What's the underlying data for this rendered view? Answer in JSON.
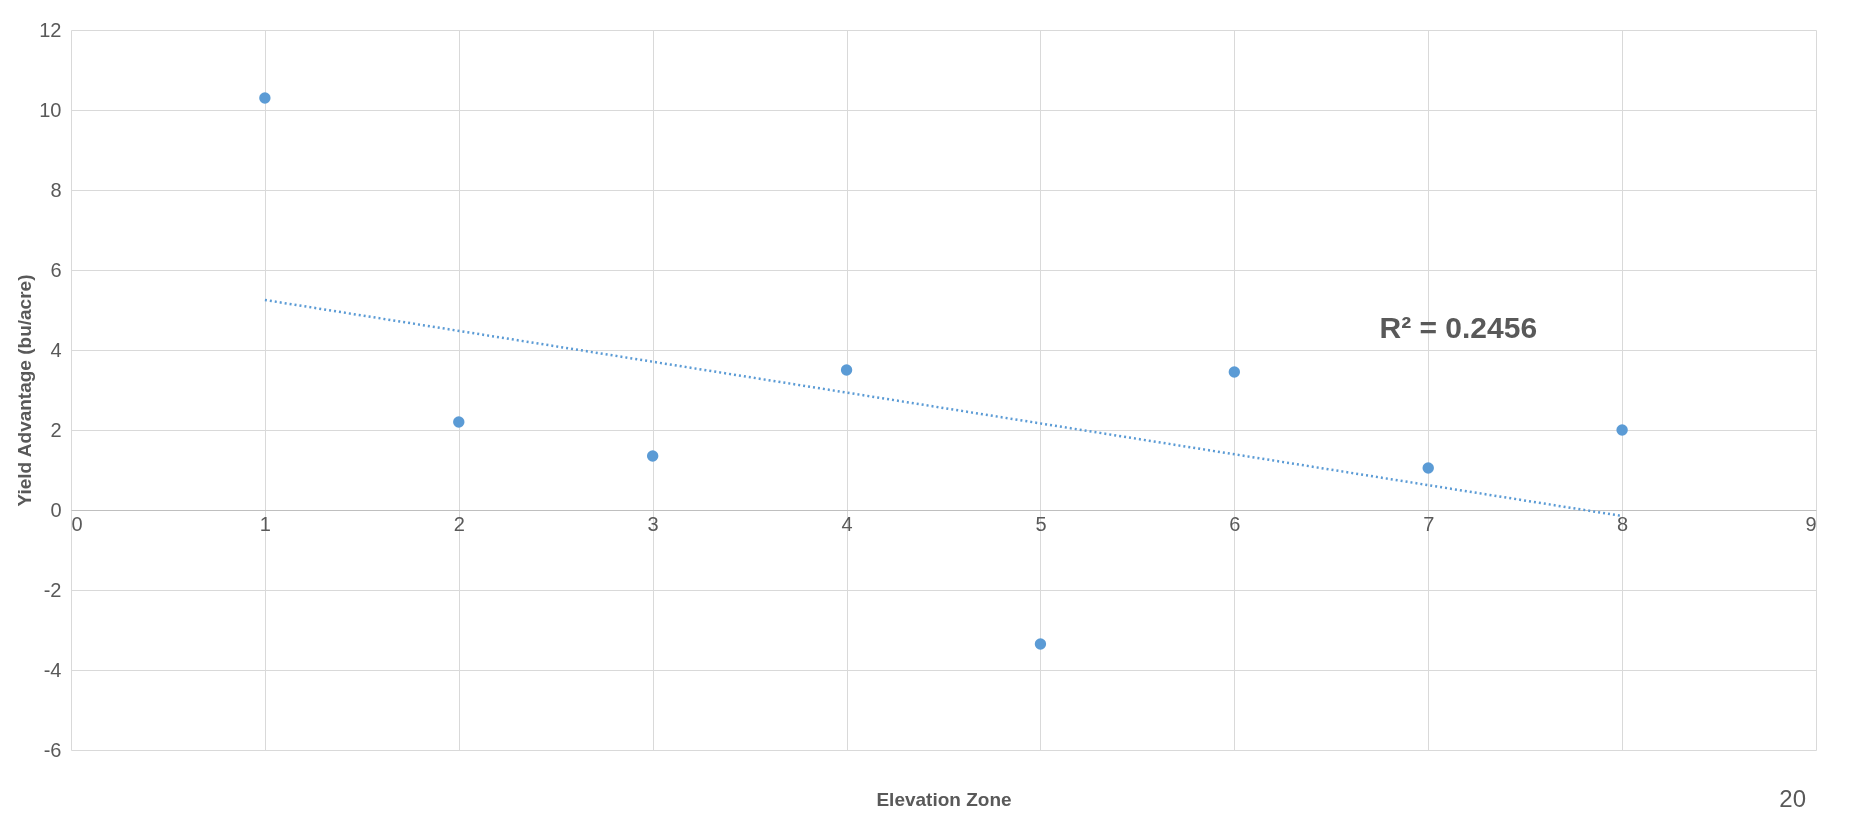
{
  "chart_data": {
    "type": "scatter",
    "xlabel": "Elevation Zone",
    "ylabel": "Yield Advantage (bu/acre)",
    "x": [
      1,
      2,
      3,
      4,
      5,
      6,
      7,
      8
    ],
    "series": [
      {
        "color": "#5b9bd5",
        "values": [
          10.3,
          2.2,
          1.35,
          3.5,
          -3.35,
          3.45,
          1.05,
          2.0
        ],
        "marker": "circle"
      },
      {
        "type": "line",
        "color": "#5b9bd5",
        "x": [
          1,
          8
        ],
        "values": [
          5.25,
          -0.15
        ],
        "line_style": "dotted",
        "marker": "none"
      }
    ],
    "xlim": [
      0,
      9
    ],
    "xticks": [
      0,
      1,
      2,
      3,
      4,
      5,
      6,
      7,
      8,
      9
    ],
    "ylim": [
      -6,
      12
    ],
    "yticks": [
      -6,
      -4,
      -2,
      0,
      2,
      4,
      6,
      8,
      10,
      12
    ],
    "grid": true,
    "annotations": [
      "R² = 0.2456",
      "20"
    ]
  }
}
